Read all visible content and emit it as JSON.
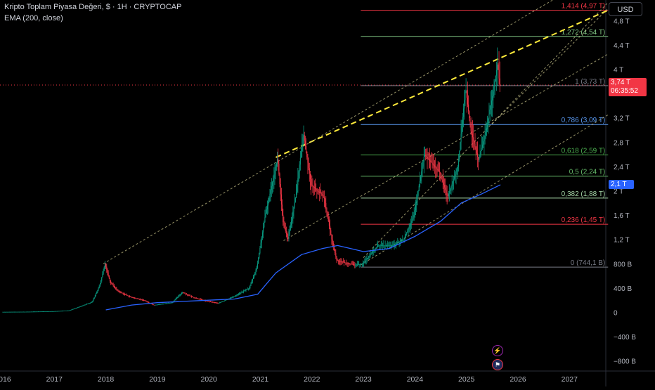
{
  "header": {
    "title": "Kripto Toplam Piyasa Değeri, $ · 1H · CRYPTOCAP",
    "indicator": "EMA (200, close)"
  },
  "currency_button": "USD",
  "price_badge": {
    "value": "3,74 T",
    "countdown": "06:35:52",
    "color": "#f23645"
  },
  "ema_badge": {
    "value": "2,1 T",
    "color": "#2962ff"
  },
  "events": {
    "flash_icon": "lightning-icon",
    "flag_icon": "us-flag-icon"
  },
  "chart_data": {
    "type": "candlestick",
    "title": "Kripto Toplam Piyasa Değeri, $ · 1H · CRYPTOCAP",
    "y_unit": "USD",
    "x_axis": {
      "ticks": [
        {
          "year": 2016,
          "label": "2016"
        },
        {
          "year": 2017,
          "label": "2017"
        },
        {
          "year": 2018,
          "label": "2018"
        },
        {
          "year": 2019,
          "label": "2019"
        },
        {
          "year": 2020,
          "label": "2020"
        },
        {
          "year": 2021,
          "label": "2021"
        },
        {
          "year": 2022,
          "label": "2022"
        },
        {
          "year": 2023,
          "label": "2023"
        },
        {
          "year": 2024,
          "label": "2024"
        },
        {
          "year": 2025,
          "label": "2025"
        },
        {
          "year": 2026,
          "label": "2026"
        },
        {
          "year": 2027,
          "label": "2027"
        }
      ],
      "range": [
        2016,
        2027.9
      ]
    },
    "y_axis": {
      "ticks": [
        {
          "v": 4.8,
          "label": "4,8 T"
        },
        {
          "v": 4.4,
          "label": "4,4 T"
        },
        {
          "v": 4.0,
          "label": "4 T"
        },
        {
          "v": 3.2,
          "label": "3,2 T"
        },
        {
          "v": 2.8,
          "label": "2,8 T"
        },
        {
          "v": 2.4,
          "label": "2,4 T"
        },
        {
          "v": 2.0,
          "label": "2 T"
        },
        {
          "v": 1.6,
          "label": "1,6 T"
        },
        {
          "v": 1.2,
          "label": "1,2 T"
        },
        {
          "v": 0.8,
          "label": "800 B"
        },
        {
          "v": 0.4,
          "label": "400 B"
        },
        {
          "v": 0.0,
          "label": "0"
        },
        {
          "v": -0.4,
          "label": "−400 B"
        },
        {
          "v": -0.8,
          "label": "−800 B"
        }
      ],
      "range": [
        -0.92,
        5.0
      ]
    },
    "price_path": [
      [
        2016.0,
        0.007
      ],
      [
        2016.5,
        0.01
      ],
      [
        2017.0,
        0.018
      ],
      [
        2017.3,
        0.03
      ],
      [
        2017.5,
        0.09
      ],
      [
        2017.75,
        0.17
      ],
      [
        2017.9,
        0.45
      ],
      [
        2018.0,
        0.8
      ],
      [
        2018.1,
        0.5
      ],
      [
        2018.25,
        0.35
      ],
      [
        2018.5,
        0.25
      ],
      [
        2018.75,
        0.2
      ],
      [
        2018.95,
        0.12
      ],
      [
        2019.3,
        0.16
      ],
      [
        2019.5,
        0.33
      ],
      [
        2019.7,
        0.25
      ],
      [
        2019.95,
        0.19
      ],
      [
        2020.2,
        0.15
      ],
      [
        2020.5,
        0.26
      ],
      [
        2020.8,
        0.4
      ],
      [
        2020.95,
        0.75
      ],
      [
        2021.1,
        1.55
      ],
      [
        2021.35,
        2.55
      ],
      [
        2021.45,
        1.5
      ],
      [
        2021.55,
        1.2
      ],
      [
        2021.7,
        1.9
      ],
      [
        2021.85,
        2.95
      ],
      [
        2022.0,
        2.1
      ],
      [
        2022.25,
        1.9
      ],
      [
        2022.4,
        1.2
      ],
      [
        2022.5,
        0.85
      ],
      [
        2022.85,
        0.78
      ],
      [
        2023.0,
        0.8
      ],
      [
        2023.3,
        1.1
      ],
      [
        2023.6,
        1.1
      ],
      [
        2023.8,
        1.2
      ],
      [
        2024.0,
        1.6
      ],
      [
        2024.2,
        2.6
      ],
      [
        2024.5,
        2.3
      ],
      [
        2024.65,
        1.9
      ],
      [
        2024.85,
        2.4
      ],
      [
        2025.0,
        3.7
      ],
      [
        2025.1,
        3.0
      ],
      [
        2025.25,
        2.5
      ],
      [
        2025.4,
        3.0
      ],
      [
        2025.55,
        3.7
      ],
      [
        2025.62,
        4.1
      ],
      [
        2025.66,
        3.74
      ]
    ],
    "ema_path": [
      [
        2018.0,
        0.04
      ],
      [
        2018.5,
        0.12
      ],
      [
        2019.0,
        0.16
      ],
      [
        2019.5,
        0.18
      ],
      [
        2020.0,
        0.2
      ],
      [
        2020.5,
        0.22
      ],
      [
        2020.95,
        0.3
      ],
      [
        2021.3,
        0.65
      ],
      [
        2021.8,
        0.95
      ],
      [
        2022.2,
        1.05
      ],
      [
        2022.5,
        1.1
      ],
      [
        2023.0,
        1.0
      ],
      [
        2023.5,
        1.05
      ],
      [
        2024.0,
        1.25
      ],
      [
        2024.5,
        1.5
      ],
      [
        2024.9,
        1.8
      ],
      [
        2025.3,
        1.95
      ],
      [
        2025.66,
        2.1
      ]
    ],
    "fibonacci": {
      "x_start": 2022.95,
      "x_end": 2027.75,
      "levels": [
        {
          "ratio": "1,414",
          "value": 4.97,
          "label": "1,414 (4,97 T)",
          "color": "#f23645"
        },
        {
          "ratio": "1,272",
          "value": 4.54,
          "label": "1,272 (4,54 T)",
          "color": "#81c784"
        },
        {
          "ratio": "1",
          "value": 3.73,
          "label": "1 (3,73 T)",
          "color": "#787b86"
        },
        {
          "ratio": "0,786",
          "value": 3.09,
          "label": "0,786 (3,09 T)",
          "color": "#5b9cf6"
        },
        {
          "ratio": "0,618",
          "value": 2.59,
          "label": "0,618 (2,59 T)",
          "color": "#4caf50"
        },
        {
          "ratio": "0,5",
          "value": 2.24,
          "label": "0,5 (2,24 T)",
          "color": "#66bb6a"
        },
        {
          "ratio": "0,382",
          "value": 1.88,
          "label": "0,382 (1,88 T)",
          "color": "#a5d6a7"
        },
        {
          "ratio": "0,236",
          "value": 1.45,
          "label": "0,236 (1,45 T)",
          "color": "#f23645"
        },
        {
          "ratio": "0",
          "value": 0.744,
          "label": "0 (744,1 B)",
          "color": "#787b86"
        }
      ]
    },
    "trendlines": [
      {
        "style": "yellow-dashed",
        "from": [
          2021.3,
          2.55
        ],
        "to": [
          2027.75,
          4.97
        ]
      },
      {
        "style": "light-dashed",
        "from": [
          2017.95,
          0.8
        ],
        "to": [
          2027.0,
          5.3
        ]
      },
      {
        "style": "light-dashed",
        "from": [
          2021.45,
          1.18
        ],
        "to": [
          2027.75,
          4.25
        ]
      },
      {
        "style": "light-dashed",
        "from": [
          2022.95,
          0.78
        ],
        "to": [
          2027.75,
          3.25
        ]
      },
      {
        "style": "light-dashed",
        "from": [
          2023.0,
          0.9
        ],
        "to": [
          2027.75,
          5.1
        ]
      },
      {
        "style": "light-dashed",
        "from": [
          2025.5,
          3.1
        ],
        "to": [
          2027.75,
          5.0
        ]
      }
    ],
    "current_price": 3.74,
    "ema_current": 2.1,
    "colors": {
      "up": "#089981",
      "down": "#f23645",
      "ema": "#2962ff",
      "trend": "#ffeb3b",
      "grid": "#1e222d"
    }
  }
}
